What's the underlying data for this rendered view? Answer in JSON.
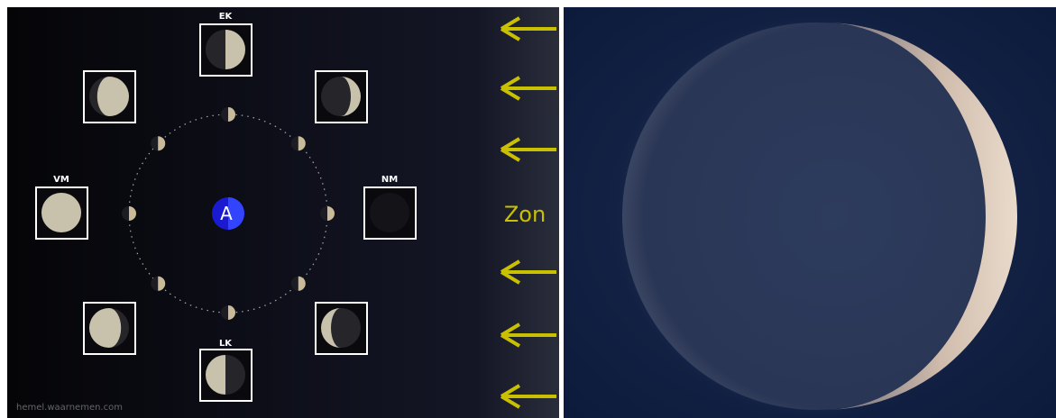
{
  "diagram": {
    "phases": {
      "first_quarter": "EK",
      "new_moon": "NM",
      "last_quarter": "LK",
      "full_moon": "VM"
    },
    "earth": "A",
    "sun": "Zon",
    "credit": "hemel.waarnemen.com"
  }
}
